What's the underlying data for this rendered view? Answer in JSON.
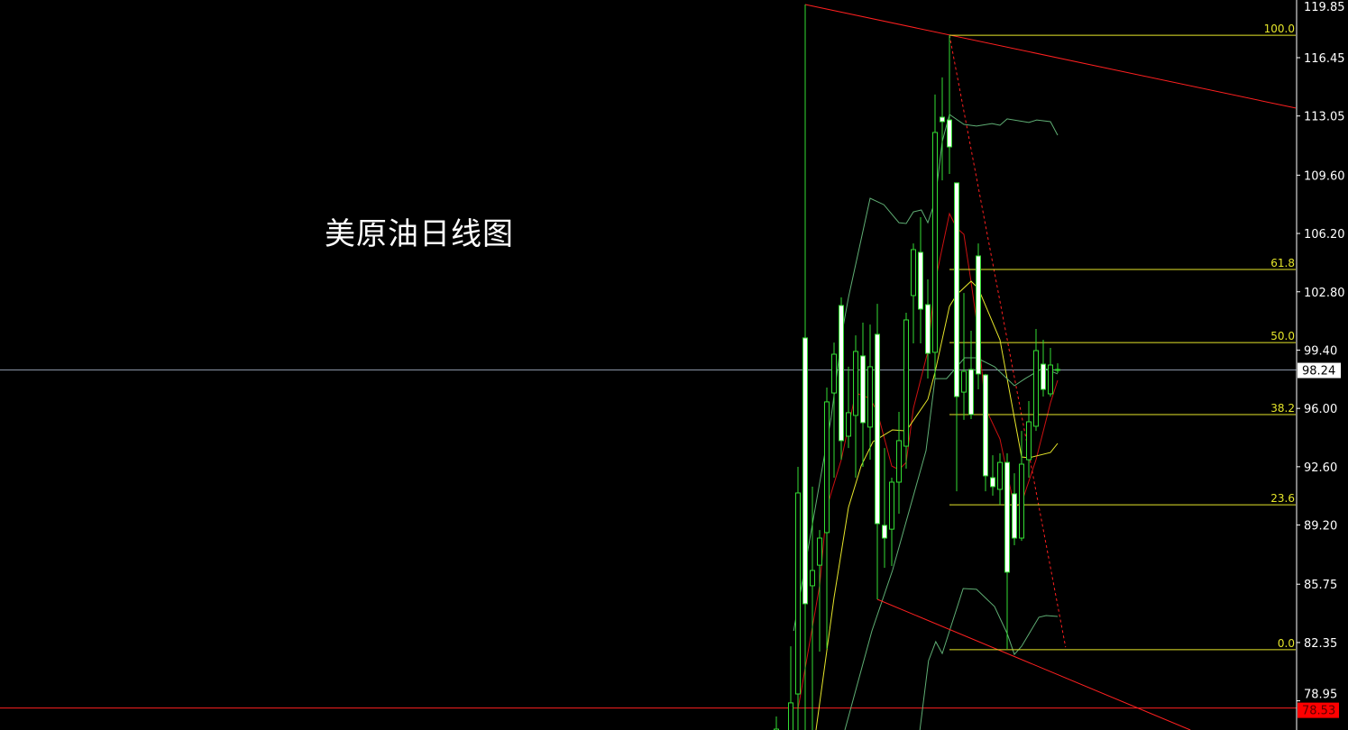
{
  "chart_data": {
    "type": "candlestick",
    "title": "美原油日线图",
    "grid": false,
    "background": "#000000",
    "colors": {
      "candle_outline": "#33dd33",
      "bear_body": "#ffffff",
      "bull_body": "#000000",
      "ma_fast": "#cc1111",
      "ma_slow": "#e6e62a",
      "bands": "#5fae74",
      "trendline": "#ff2020",
      "fibonacci": "#e6e62a",
      "current_price_line": "#8a94a6",
      "axis_text": "#ffffff"
    },
    "y_axis": {
      "ylim": [
        77.2,
        119.85
      ],
      "ticks": [
        "119.85",
        "116.45",
        "113.05",
        "109.60",
        "106.20",
        "102.80",
        "99.40",
        "96.00",
        "92.60",
        "89.20",
        "85.75",
        "82.35",
        "78.95"
      ],
      "tick_values": [
        119.85,
        116.45,
        113.05,
        109.6,
        106.2,
        102.8,
        99.4,
        96.0,
        92.6,
        89.2,
        85.75,
        82.35,
        78.95
      ]
    },
    "current_price": {
      "label": "98.24",
      "value": 98.24
    },
    "horizontal_line": {
      "label": "78.53",
      "value": 78.53
    },
    "candles_ohlc_by_index": [
      {
        "i": 0,
        "o": 77.1,
        "h": 78.04,
        "l": 77.0,
        "c": 77.3
      },
      {
        "i": 2,
        "o": 77.0,
        "h": 82.13,
        "l": 77.0,
        "c": 78.83
      },
      {
        "i": 3,
        "o": 79.35,
        "h": 92.59,
        "l": 77.0,
        "c": 91.07
      },
      {
        "i": 4,
        "o": 100.11,
        "h": 119.55,
        "l": 77.0,
        "c": 84.61
      },
      {
        "i": 5,
        "o": 85.66,
        "h": 91.44,
        "l": 77.0,
        "c": 86.55
      },
      {
        "i": 6,
        "o": 86.86,
        "h": 88.91,
        "l": 81.82,
        "c": 88.44
      },
      {
        "i": 7,
        "o": 88.76,
        "h": 97.22,
        "l": 81.98,
        "c": 96.38
      },
      {
        "i": 8,
        "o": 96.9,
        "h": 99.84,
        "l": 91.96,
        "c": 99.16
      },
      {
        "i": 9,
        "o": 102.0,
        "h": 102.47,
        "l": 93.01,
        "c": 94.12
      },
      {
        "i": 10,
        "o": 94.38,
        "h": 98.43,
        "l": 93.69,
        "c": 95.75
      },
      {
        "i": 11,
        "o": 95.59,
        "h": 100.26,
        "l": 91.96,
        "c": 99.32
      },
      {
        "i": 12,
        "o": 99.06,
        "h": 101.0,
        "l": 92.59,
        "c": 95.17
      },
      {
        "i": 13,
        "o": 94.91,
        "h": 100.89,
        "l": 93.01,
        "c": 98.43
      },
      {
        "i": 14,
        "o": 100.32,
        "h": 102.1,
        "l": 84.87,
        "c": 89.28
      },
      {
        "i": 15,
        "o": 89.18,
        "h": 93.69,
        "l": 86.71,
        "c": 88.44
      },
      {
        "i": 16,
        "o": 88.96,
        "h": 91.96,
        "l": 86.81,
        "c": 91.7
      },
      {
        "i": 17,
        "o": 91.7,
        "h": 95.8,
        "l": 89.86,
        "c": 94.12
      },
      {
        "i": 18,
        "o": 93.8,
        "h": 101.58,
        "l": 92.49,
        "c": 101.16
      },
      {
        "i": 19,
        "o": 102.58,
        "h": 105.62,
        "l": 99.79,
        "c": 105.26
      },
      {
        "i": 20,
        "o": 105.1,
        "h": 107.15,
        "l": 99.79,
        "c": 101.79
      },
      {
        "i": 21,
        "o": 102.05,
        "h": 103.52,
        "l": 97.74,
        "c": 99.21
      },
      {
        "i": 22,
        "o": 99.27,
        "h": 114.3,
        "l": 97.74,
        "c": 112.09
      },
      {
        "i": 23,
        "o": 112.98,
        "h": 115.3,
        "l": 109.3,
        "c": 112.72
      },
      {
        "i": 24,
        "o": 112.82,
        "h": 117.76,
        "l": 109.67,
        "c": 111.25
      },
      {
        "i": 25,
        "o": 109.15,
        "h": 109.15,
        "l": 91.17,
        "c": 96.69
      },
      {
        "i": 26,
        "o": 96.95,
        "h": 102.73,
        "l": 95.33,
        "c": 98.16
      },
      {
        "i": 27,
        "o": 98.27,
        "h": 100.53,
        "l": 95.38,
        "c": 95.64
      },
      {
        "i": 28,
        "o": 104.89,
        "h": 105.62,
        "l": 97.11,
        "c": 98.01
      },
      {
        "i": 29,
        "o": 97.95,
        "h": 98.01,
        "l": 91.17,
        "c": 92.07
      },
      {
        "i": 30,
        "o": 91.96,
        "h": 93.27,
        "l": 90.91,
        "c": 91.44
      },
      {
        "i": 31,
        "o": 91.28,
        "h": 93.38,
        "l": 90.38,
        "c": 92.85
      },
      {
        "i": 32,
        "o": 92.85,
        "h": 93.38,
        "l": 81.98,
        "c": 86.45
      },
      {
        "i": 33,
        "o": 91.02,
        "h": 92.22,
        "l": 88.02,
        "c": 88.44
      },
      {
        "i": 34,
        "o": 88.44,
        "h": 94.69,
        "l": 88.28,
        "c": 92.75
      },
      {
        "i": 35,
        "o": 93.01,
        "h": 96.43,
        "l": 91.96,
        "c": 95.22
      },
      {
        "i": 36,
        "o": 94.96,
        "h": 100.63,
        "l": 94.69,
        "c": 99.37
      },
      {
        "i": 37,
        "o": 98.58,
        "h": 100.0,
        "l": 96.69,
        "c": 97.11
      },
      {
        "i": 38,
        "o": 96.85,
        "h": 99.53,
        "l": 96.69,
        "c": 98.53
      },
      {
        "i": 39,
        "o": 98.27,
        "h": 98.63,
        "l": 98.06,
        "c": 98.24
      }
    ],
    "lines": [
      {
        "role": "ma_fast",
        "style": "solid",
        "points": [
          [
            3,
            78.45
          ],
          [
            6,
            85.66
          ],
          [
            7,
            90.23
          ],
          [
            9,
            93.01
          ],
          [
            11,
            96.9
          ],
          [
            13,
            96.58
          ],
          [
            14,
            95.8
          ],
          [
            16,
            92.64
          ],
          [
            17,
            92.43
          ],
          [
            18,
            92.85
          ],
          [
            19,
            96.01
          ],
          [
            21,
            99.32
          ],
          [
            22,
            103.36
          ],
          [
            24,
            107.36
          ],
          [
            25,
            106.52
          ],
          [
            26,
            106.15
          ],
          [
            27,
            103.36
          ],
          [
            28,
            100.37
          ],
          [
            29,
            96.01
          ],
          [
            31,
            94.22
          ],
          [
            33,
            90.23
          ],
          [
            34,
            90.49
          ],
          [
            36,
            93.01
          ],
          [
            38,
            96.32
          ],
          [
            39,
            97.64
          ]
        ]
      },
      {
        "role": "ma_slow",
        "style": "solid",
        "points": [
          [
            5.5,
            77.25
          ],
          [
            8,
            84.97
          ],
          [
            10,
            90.23
          ],
          [
            11.75,
            92.64
          ],
          [
            13.4,
            94.06
          ],
          [
            16.1,
            94.75
          ],
          [
            18,
            94.69
          ],
          [
            21,
            96.53
          ],
          [
            22,
            98.11
          ],
          [
            24,
            101.95
          ],
          [
            25,
            102.63
          ],
          [
            27,
            103.42
          ],
          [
            28,
            103.0
          ],
          [
            31,
            100.0
          ],
          [
            34,
            93.17
          ],
          [
            35,
            93.12
          ],
          [
            38,
            93.43
          ],
          [
            39,
            93.96
          ]
        ]
      },
      {
        "role": "bands",
        "style": "solid",
        "points": [
          [
            2.4,
            83.03
          ],
          [
            7.6,
            95.48
          ],
          [
            9.25,
            100.74
          ],
          [
            10,
            102.47
          ],
          [
            13,
            108.25
          ],
          [
            14.9,
            107.88
          ],
          [
            17,
            106.83
          ],
          [
            18,
            106.78
          ],
          [
            19,
            107.46
          ],
          [
            20.1,
            107.57
          ],
          [
            21,
            106.83
          ],
          [
            22,
            108.09
          ],
          [
            23,
            111.56
          ],
          [
            24,
            113.14
          ],
          [
            26,
            112.56
          ],
          [
            27.75,
            112.46
          ],
          [
            29.9,
            112.61
          ],
          [
            31,
            112.51
          ],
          [
            32,
            112.88
          ],
          [
            35,
            112.67
          ],
          [
            36.1,
            112.82
          ],
          [
            38,
            112.72
          ],
          [
            39,
            111.93
          ]
        ]
      },
      {
        "role": "bands",
        "style": "solid",
        "points": [
          [
            9.5,
            77.25
          ],
          [
            13.25,
            83.03
          ],
          [
            16.1,
            86.55
          ],
          [
            20.75,
            93.54
          ],
          [
            22,
            97.74
          ],
          [
            23.6,
            97.74
          ],
          [
            26.1,
            98.95
          ],
          [
            27.75,
            98.95
          ],
          [
            30.25,
            98.43
          ],
          [
            33,
            97.32
          ],
          [
            34.5,
            97.74
          ],
          [
            37,
            98.37
          ],
          [
            39,
            98.01
          ]
        ]
      },
      {
        "role": "bands",
        "style": "solid",
        "points": [
          [
            19.9,
            77.25
          ],
          [
            21.1,
            81.29
          ],
          [
            22.1,
            82.4
          ],
          [
            23,
            81.71
          ],
          [
            25.9,
            85.5
          ],
          [
            27.75,
            85.45
          ],
          [
            30.25,
            84.45
          ],
          [
            32,
            82.87
          ],
          [
            33,
            81.66
          ],
          [
            34,
            82.13
          ],
          [
            36.4,
            83.82
          ],
          [
            37.4,
            83.92
          ],
          [
            39,
            83.87
          ]
        ]
      },
      {
        "role": "trendline",
        "style": "solid",
        "points": [
          [
            4,
            119.55
          ],
          [
            72,
            113.51
          ]
        ]
      },
      {
        "role": "trendline",
        "style": "solid",
        "points": [
          [
            14,
            84.87
          ],
          [
            57.4,
            77.25
          ]
        ]
      },
      {
        "role": "trendline",
        "style": "dashed",
        "points": [
          [
            24,
            117.76
          ],
          [
            40.1,
            82.08
          ]
        ]
      }
    ],
    "fibonacci": {
      "start_index": 24,
      "levels": [
        {
          "label": "100.0",
          "value": 117.76
        },
        {
          "label": "61.8",
          "value": 104.1
        },
        {
          "label": "50.0",
          "value": 99.84
        },
        {
          "label": "38.2",
          "value": 95.64
        },
        {
          "label": "23.6",
          "value": 90.38
        },
        {
          "label": "0.0",
          "value": 81.93
        }
      ]
    }
  }
}
